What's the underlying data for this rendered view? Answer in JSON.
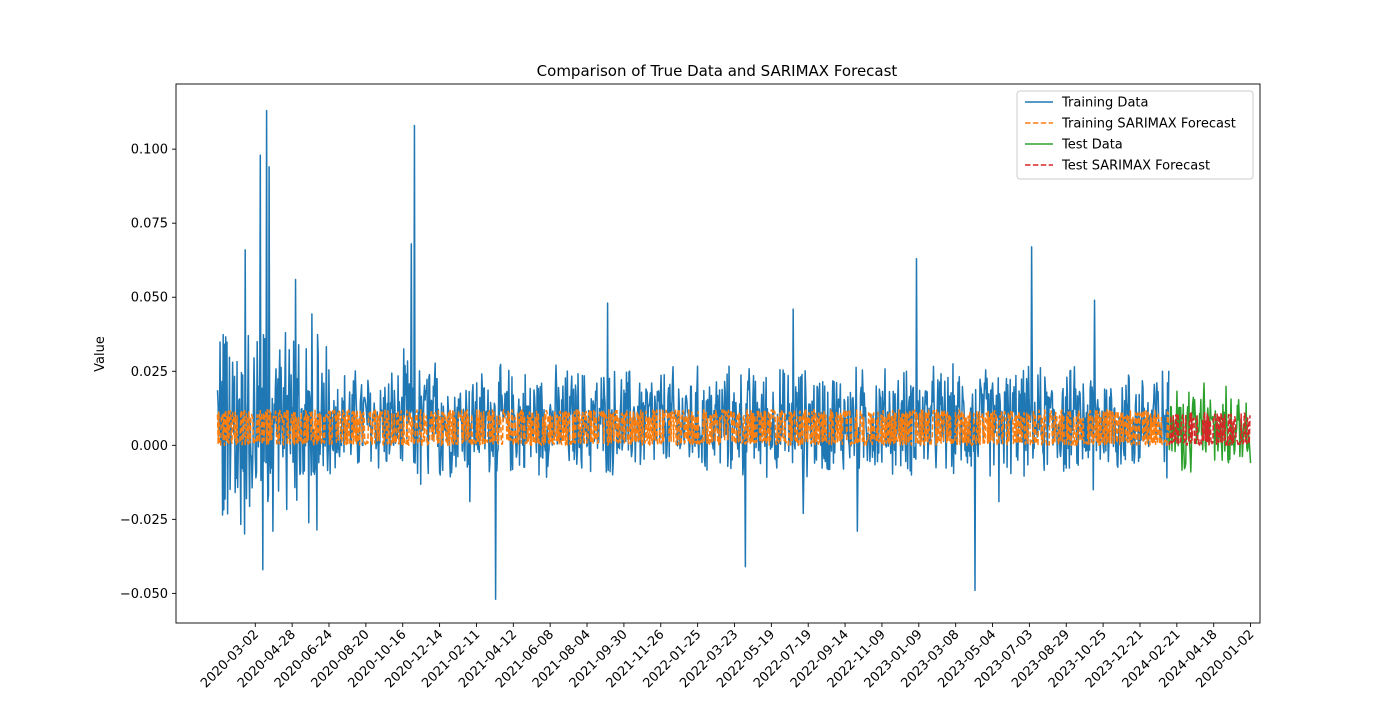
{
  "chart_data": {
    "type": "line",
    "title": "Comparison of True Data and SARIMAX Forecast",
    "xlabel": "",
    "ylabel": "Value",
    "x_axis": {
      "type": "date",
      "tick_labels": [
        "2020-03-02",
        "2020-04-28",
        "2020-06-24",
        "2020-08-20",
        "2020-10-16",
        "2020-12-14",
        "2021-02-11",
        "2021-04-12",
        "2021-06-08",
        "2021-08-04",
        "2021-09-30",
        "2021-11-26",
        "2022-01-25",
        "2022-03-23",
        "2022-05-19",
        "2022-07-19",
        "2022-09-14",
        "2022-11-09",
        "2023-01-09",
        "2023-03-08",
        "2023-05-04",
        "2023-07-03",
        "2023-08-29",
        "2023-10-25",
        "2023-12-21",
        "2024-02-21",
        "2024-04-18",
        "2020-01-02"
      ],
      "range": [
        "2019-10-28",
        "2024-07-16"
      ]
    },
    "y_axis": {
      "range": [
        -0.06,
        0.122
      ],
      "ticks": [
        -0.05,
        -0.025,
        0.0,
        0.025,
        0.05,
        0.075,
        0.1
      ],
      "tick_labels": [
        "−0.050",
        "−0.025",
        "0.000",
        "0.025",
        "0.050",
        "0.075",
        "0.100"
      ]
    },
    "grid": false,
    "legend_position": "top-right",
    "series": [
      {
        "name": "Training Data",
        "color": "#1f77b4",
        "style": "solid",
        "x_range": [
          "2020-01-02",
          "2024-02-22"
        ],
        "peaks": [
          {
            "x": "2020-02-15",
            "y": 0.066
          },
          {
            "x": "2020-03-10",
            "y": 0.098
          },
          {
            "x": "2020-03-14",
            "y": -0.042
          },
          {
            "x": "2020-03-20",
            "y": 0.113
          },
          {
            "x": "2020-03-24",
            "y": 0.094
          },
          {
            "x": "2020-03-30",
            "y": -0.029
          },
          {
            "x": "2020-05-05",
            "y": 0.056
          },
          {
            "x": "2020-11-05",
            "y": 0.068
          },
          {
            "x": "2020-11-10",
            "y": 0.108
          },
          {
            "x": "2021-02-06",
            "y": -0.019
          },
          {
            "x": "2021-03-19",
            "y": -0.052
          },
          {
            "x": "2021-09-13",
            "y": 0.048
          },
          {
            "x": "2022-04-20",
            "y": -0.041
          },
          {
            "x": "2022-07-05",
            "y": 0.046
          },
          {
            "x": "2022-07-21",
            "y": -0.023
          },
          {
            "x": "2022-10-15",
            "y": -0.029
          },
          {
            "x": "2023-01-17",
            "y": 0.063
          },
          {
            "x": "2023-04-20",
            "y": -0.049
          },
          {
            "x": "2023-05-28",
            "y": -0.019
          },
          {
            "x": "2023-07-19",
            "y": 0.067
          },
          {
            "x": "2023-10-27",
            "y": 0.049
          },
          {
            "x": "2023-10-25",
            "y": -0.015
          }
        ],
        "typical_range": [
          -0.005,
          0.025
        ]
      },
      {
        "name": "Training SARIMAX Forecast",
        "color": "#ff7f0e",
        "style": "dashed",
        "x_range": [
          "2020-01-02",
          "2024-02-22"
        ],
        "typical_range": [
          0.0,
          0.012
        ]
      },
      {
        "name": "Test Data",
        "color": "#2ca02c",
        "style": "solid",
        "x_range": [
          "2024-02-22",
          "2024-07-01"
        ],
        "peaks": [
          {
            "x": "2024-04-18",
            "y": 0.021
          },
          {
            "x": "2024-03-28",
            "y": -0.009
          },
          {
            "x": "2024-07-01",
            "y": -0.006
          }
        ],
        "typical_range": [
          -0.004,
          0.018
        ]
      },
      {
        "name": "Test SARIMAX Forecast",
        "color": "#d62728",
        "style": "dashed",
        "x_range": [
          "2024-02-22",
          "2024-07-01"
        ],
        "typical_range": [
          0.0,
          0.011
        ]
      }
    ]
  }
}
